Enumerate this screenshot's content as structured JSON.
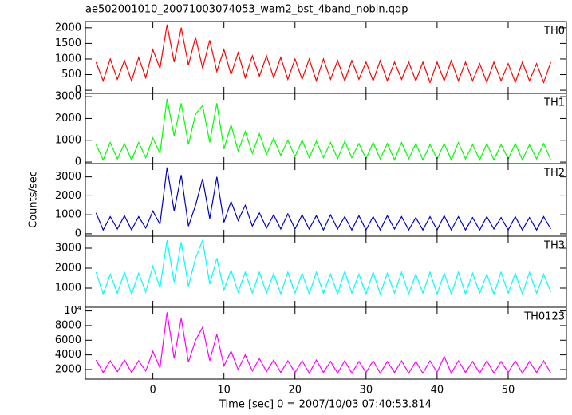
{
  "chart_data": [
    {
      "type": "line",
      "title": "ae502001010_20071003074053_wam2_bst_4band_nobin.qdp",
      "x": [
        -8,
        -7,
        -6,
        -5,
        -4,
        -3,
        -2,
        -1,
        0,
        1,
        2,
        3,
        4,
        5,
        6,
        7,
        8,
        9,
        10,
        11,
        12,
        13,
        14,
        15,
        16,
        17,
        18,
        19,
        20,
        21,
        22,
        23,
        24,
        25,
        26,
        27,
        28,
        29,
        30,
        31,
        32,
        33,
        34,
        35,
        36,
        37,
        38,
        39,
        40,
        41,
        42,
        43,
        44,
        45,
        46,
        47,
        48,
        49,
        50,
        51,
        52,
        53,
        54,
        55,
        56
      ],
      "series": [
        {
          "name": "TH0",
          "color": "#ff0000",
          "values": [
            900,
            300,
            1000,
            350,
            950,
            300,
            1050,
            400,
            1300,
            700,
            2100,
            900,
            2000,
            800,
            1700,
            700,
            1600,
            600,
            1300,
            500,
            1200,
            400,
            1100,
            450,
            1100,
            400,
            1050,
            350,
            1000,
            350,
            1000,
            300,
            1000,
            350,
            950,
            300,
            950,
            350,
            900,
            300,
            950,
            300,
            900,
            350,
            900,
            300,
            900,
            250,
            900,
            300,
            950,
            300,
            900,
            300,
            850,
            250,
            900,
            300,
            850,
            250,
            900,
            300,
            850,
            250,
            900
          ]
        }
      ],
      "xlim": [
        -9.5,
        58.2
      ],
      "xticks": [
        0,
        10,
        20,
        30,
        40,
        50
      ],
      "ylim": [
        -100,
        2200
      ],
      "yticks": [
        0,
        500,
        1000,
        1500,
        2000
      ]
    },
    {
      "type": "line",
      "x": [
        -8,
        -7,
        -6,
        -5,
        -4,
        -3,
        -2,
        -1,
        0,
        1,
        2,
        3,
        4,
        5,
        6,
        7,
        8,
        9,
        10,
        11,
        12,
        13,
        14,
        15,
        16,
        17,
        18,
        19,
        20,
        21,
        22,
        23,
        24,
        25,
        26,
        27,
        28,
        29,
        30,
        31,
        32,
        33,
        34,
        35,
        36,
        37,
        38,
        39,
        40,
        41,
        42,
        43,
        44,
        45,
        46,
        47,
        48,
        49,
        50,
        51,
        52,
        53,
        54,
        55,
        56
      ],
      "series": [
        {
          "name": "TH1",
          "color": "#00ff00",
          "values": [
            800,
            100,
            900,
            150,
            850,
            100,
            900,
            200,
            1100,
            400,
            2900,
            1200,
            2700,
            800,
            2200,
            2600,
            900,
            2700,
            600,
            1700,
            500,
            1400,
            400,
            1300,
            350,
            1100,
            300,
            1000,
            250,
            1000,
            200,
            950,
            200,
            900,
            150,
            950,
            200,
            850,
            150,
            900,
            150,
            850,
            100,
            900,
            150,
            850,
            100,
            800,
            150,
            850,
            100,
            900,
            150,
            800,
            100,
            850,
            100,
            800,
            150,
            850,
            100,
            800,
            150,
            850,
            100
          ]
        }
      ],
      "xlim": [
        -9.5,
        58.2
      ],
      "xticks": [
        0,
        10,
        20,
        30,
        40,
        50
      ],
      "ylim": [
        -70,
        3150
      ],
      "yticks": [
        0,
        1000,
        2000,
        3000
      ]
    },
    {
      "type": "line",
      "ylabel": "Counts/sec",
      "x": [
        -8,
        -7,
        -6,
        -5,
        -4,
        -3,
        -2,
        -1,
        0,
        1,
        2,
        3,
        4,
        5,
        6,
        7,
        8,
        9,
        10,
        11,
        12,
        13,
        14,
        15,
        16,
        17,
        18,
        19,
        20,
        21,
        22,
        23,
        24,
        25,
        26,
        27,
        28,
        29,
        30,
        31,
        32,
        33,
        34,
        35,
        36,
        37,
        38,
        39,
        40,
        41,
        42,
        43,
        44,
        45,
        46,
        47,
        48,
        49,
        50,
        51,
        52,
        53,
        54,
        55,
        56
      ],
      "series": [
        {
          "name": "TH2",
          "color": "#0000cd",
          "values": [
            1100,
            200,
            900,
            250,
            950,
            200,
            900,
            300,
            1200,
            500,
            3500,
            1200,
            3100,
            400,
            1500,
            2900,
            800,
            3000,
            600,
            1700,
            700,
            1500,
            400,
            1100,
            300,
            1000,
            250,
            1050,
            250,
            1000,
            250,
            950,
            200,
            1000,
            250,
            900,
            200,
            950,
            200,
            900,
            200,
            950,
            250,
            900,
            200,
            850,
            200,
            900,
            200,
            950,
            200,
            900,
            200,
            850,
            200,
            900,
            250,
            850,
            200,
            900,
            200,
            850,
            200,
            900,
            250
          ]
        }
      ],
      "xlim": [
        -9.5,
        58.2
      ],
      "xticks": [
        0,
        10,
        20,
        30,
        40,
        50
      ],
      "ylim": [
        -130,
        3700
      ],
      "yticks": [
        0,
        1000,
        2000,
        3000
      ]
    },
    {
      "type": "line",
      "x": [
        -8,
        -7,
        -6,
        -5,
        -4,
        -3,
        -2,
        -1,
        0,
        1,
        2,
        3,
        4,
        5,
        6,
        7,
        8,
        9,
        10,
        11,
        12,
        13,
        14,
        15,
        16,
        17,
        18,
        19,
        20,
        21,
        22,
        23,
        24,
        25,
        26,
        27,
        28,
        29,
        30,
        31,
        32,
        33,
        34,
        35,
        36,
        37,
        38,
        39,
        40,
        41,
        42,
        43,
        44,
        45,
        46,
        47,
        48,
        49,
        50,
        51,
        52,
        53,
        54,
        55,
        56
      ],
      "series": [
        {
          "name": "TH3",
          "color": "#00ffff",
          "values": [
            1800,
            700,
            1700,
            750,
            1800,
            700,
            1750,
            800,
            2100,
            1000,
            3400,
            1300,
            3300,
            1100,
            2500,
            3400,
            1200,
            2500,
            900,
            1900,
            800,
            1800,
            750,
            1800,
            750,
            1750,
            700,
            1800,
            750,
            1750,
            700,
            1800,
            750,
            1700,
            700,
            1850,
            750,
            1700,
            700,
            1800,
            700,
            1750,
            750,
            1800,
            700,
            1700,
            750,
            1800,
            700,
            1750,
            700,
            1800,
            700,
            1750,
            750,
            1700,
            700,
            1800,
            750,
            1750,
            700,
            1800,
            750,
            1700,
            800
          ]
        }
      ],
      "xlim": [
        -9.5,
        58.2
      ],
      "xticks": [
        0,
        10,
        20,
        30,
        40,
        50
      ],
      "ylim": [
        40,
        3600
      ],
      "yticks": [
        1000,
        2000,
        3000
      ]
    },
    {
      "type": "line",
      "xlabel": "Time [sec] 0 = 2007/10/03 07:40:53.814",
      "x": [
        -8,
        -7,
        -6,
        -5,
        -4,
        -3,
        -2,
        -1,
        0,
        1,
        2,
        3,
        4,
        5,
        6,
        7,
        8,
        9,
        10,
        11,
        12,
        13,
        14,
        15,
        16,
        17,
        18,
        19,
        20,
        21,
        22,
        23,
        24,
        25,
        26,
        27,
        28,
        29,
        30,
        31,
        32,
        33,
        34,
        35,
        36,
        37,
        38,
        39,
        40,
        41,
        42,
        43,
        44,
        45,
        46,
        47,
        48,
        49,
        50,
        51,
        52,
        53,
        54,
        55,
        56
      ],
      "series": [
        {
          "name": "TH0123",
          "color": "#ff00ff",
          "values": [
            3300,
            1600,
            3200,
            1700,
            3300,
            1600,
            3200,
            1800,
            4500,
            2200,
            9800,
            3500,
            9000,
            3000,
            6000,
            7800,
            3200,
            6800,
            2500,
            4500,
            2000,
            4000,
            1800,
            3500,
            1700,
            3300,
            1600,
            3200,
            1600,
            3200,
            1500,
            3300,
            1600,
            3100,
            1500,
            3200,
            1500,
            3100,
            1600,
            3200,
            1500,
            3100,
            1600,
            3200,
            1500,
            3100,
            1500,
            3200,
            1600,
            3800,
            1500,
            3200,
            1600,
            3100,
            1500,
            3200,
            1500,
            3100,
            1600,
            3200,
            1500,
            3100,
            1600,
            3200,
            1500
          ]
        }
      ],
      "xlim": [
        -9.5,
        58.2
      ],
      "xticks": [
        0,
        10,
        20,
        30,
        40,
        50
      ],
      "ylim": [
        690,
        10500
      ],
      "yticks": [
        2000,
        4000,
        6000,
        8000,
        {
          "value": 10000,
          "label": "10⁴"
        }
      ]
    }
  ]
}
